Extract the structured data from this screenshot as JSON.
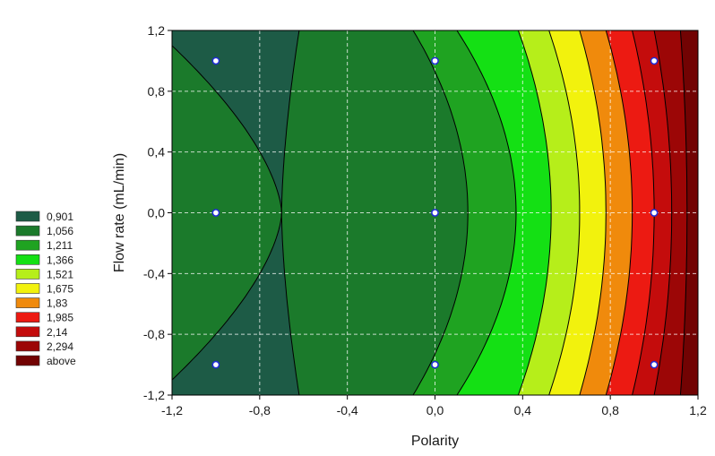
{
  "chart_data": {
    "type": "contour",
    "title": "",
    "xlabel": "Polarity",
    "ylabel": "Flow rate (mL/min)",
    "xlim": [
      -1.2,
      1.2
    ],
    "ylim": [
      -1.2,
      1.2
    ],
    "xticks": [
      "-1,2",
      "-0,8",
      "-0,4",
      "0,0",
      "0,4",
      "0,8",
      "1,2"
    ],
    "yticks": [
      "1,2",
      "0,8",
      "0,4",
      "0,0",
      "-0,4",
      "-0,8",
      "-1,2"
    ],
    "xtick_values": [
      -1.2,
      -0.8,
      -0.4,
      0.0,
      0.4,
      0.8,
      1.2
    ],
    "ytick_values": [
      1.2,
      0.8,
      0.4,
      0.0,
      -0.4,
      -0.8,
      -1.2
    ],
    "grid": true,
    "legend_position": "left",
    "levels": [
      {
        "label": "0,901",
        "color": "#1d5b46"
      },
      {
        "label": "1,056",
        "color": "#1b7a2b"
      },
      {
        "label": "1,211",
        "color": "#1fa321"
      },
      {
        "label": "1,366",
        "color": "#14e014"
      },
      {
        "label": "1,521",
        "color": "#b6ee1a"
      },
      {
        "label": "1,675",
        "color": "#f2f20d"
      },
      {
        "label": "1,83",
        "color": "#f08a0c"
      },
      {
        "label": "1,985",
        "color": "#ec1a12"
      },
      {
        "label": "2,14",
        "color": "#c40c0c"
      },
      {
        "label": "2,294",
        "color": "#9c0606"
      },
      {
        "label": "above",
        "color": "#720303"
      }
    ],
    "boundaries": [
      {
        "lower": "0,901",
        "upper": "1,056",
        "kind": "saddle",
        "pinch_x": -0.7,
        "edge_x_top": -1.2,
        "edge_y": 1.1,
        "cross_x_top": -0.62
      },
      {
        "lower": "1,056",
        "upper": "1,211",
        "kind": "arc",
        "x_edge": -0.1,
        "x_mid": 0.15
      },
      {
        "lower": "1,211",
        "upper": "1,366",
        "kind": "arc",
        "x_edge": 0.1,
        "x_mid": 0.37
      },
      {
        "lower": "1,366",
        "upper": "1,521",
        "kind": "arc",
        "x_edge": 0.38,
        "x_mid": 0.53
      },
      {
        "lower": "1,521",
        "upper": "1,675",
        "kind": "arc",
        "x_edge": 0.52,
        "x_mid": 0.66
      },
      {
        "lower": "1,675",
        "upper": "1,83",
        "kind": "arc",
        "x_edge": 0.66,
        "x_mid": 0.78
      },
      {
        "lower": "1,83",
        "upper": "1,985",
        "kind": "arc",
        "x_edge": 0.78,
        "x_mid": 0.9
      },
      {
        "lower": "1,985",
        "upper": "2,14",
        "kind": "arc",
        "x_edge": 0.9,
        "x_mid": 1.0
      },
      {
        "lower": "2,14",
        "upper": "2,294",
        "kind": "arc",
        "x_edge": 1.0,
        "x_mid": 1.08
      },
      {
        "lower": "2,294",
        "upper": "above",
        "kind": "arc",
        "x_edge": 1.12,
        "x_mid": 1.15
      }
    ],
    "design_points": [
      {
        "x": -1,
        "y": 1
      },
      {
        "x": 0,
        "y": 1
      },
      {
        "x": 1,
        "y": 1
      },
      {
        "x": -1,
        "y": 0
      },
      {
        "x": 0,
        "y": 0
      },
      {
        "x": 1,
        "y": 0
      },
      {
        "x": -1,
        "y": -1
      },
      {
        "x": 0,
        "y": -1
      },
      {
        "x": 1,
        "y": -1
      }
    ]
  }
}
